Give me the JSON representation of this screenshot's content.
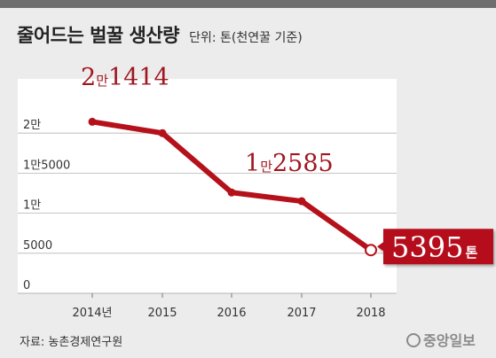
{
  "title": "줄어드는 벌꿀 생산량",
  "unit": "단위: 톤(천연꿀 기준)",
  "source": "자료: 농촌경제연구원",
  "logo": "중앙일보",
  "colors": {
    "accent": "#b5111b",
    "label_text": "#a01720",
    "panel": "#ffffff",
    "background": "#ececec"
  },
  "chart_data": {
    "type": "line",
    "x": [
      "2014년",
      "2015",
      "2016",
      "2017",
      "2018"
    ],
    "values": [
      21414,
      20000,
      12585,
      11500,
      5395
    ],
    "ylim": [
      0,
      25000
    ],
    "yticks": [
      {
        "value": 0,
        "label": "0"
      },
      {
        "value": 5000,
        "label": "5000"
      },
      {
        "value": 10000,
        "label": "1만"
      },
      {
        "value": 15000,
        "label": "1만5000"
      },
      {
        "value": 20000,
        "label": "2만"
      }
    ],
    "annotations": [
      {
        "index": 0,
        "parts": [
          "2",
          "만",
          "1414"
        ]
      },
      {
        "index": 2,
        "parts": [
          "1",
          "만",
          "2585"
        ]
      },
      {
        "index": 4,
        "parts": [
          "5395",
          "톤"
        ]
      }
    ],
    "grid": "horizontal",
    "legend": "none"
  }
}
